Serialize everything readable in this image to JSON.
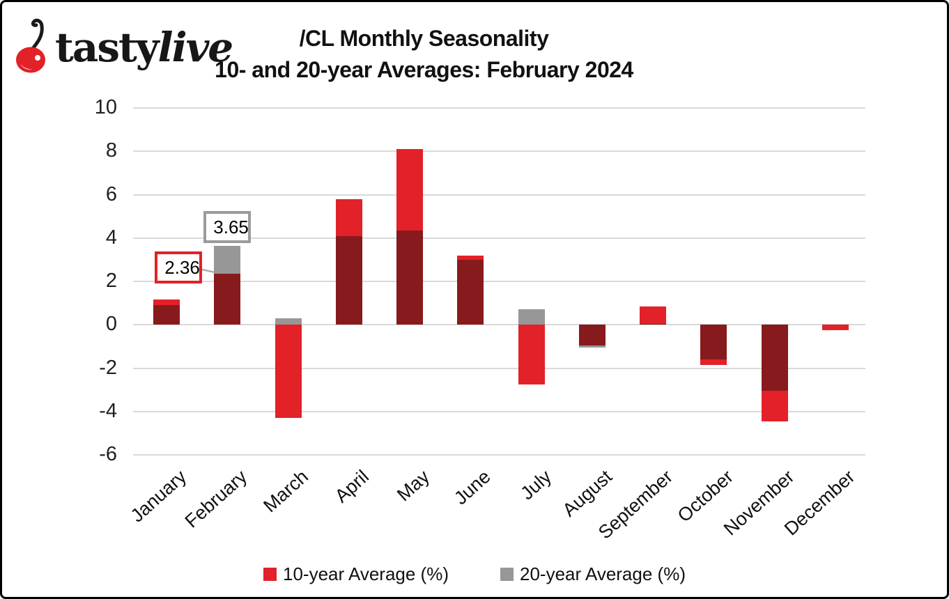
{
  "header": {
    "logo": {
      "brand_bold": "tasty",
      "brand_italic": "live",
      "cherry_color": "#E32128",
      "stem_color": "#1a1a1a"
    },
    "title_line1": "/CL Monthly Seasonality",
    "title_line2": "10- and 20-year Averages: February 2024"
  },
  "chart_data": {
    "type": "bar",
    "title": "/CL Monthly Seasonality",
    "subtitle": "10- and 20-year Averages: February 2024",
    "categories": [
      "January",
      "February",
      "March",
      "April",
      "May",
      "June",
      "July",
      "August",
      "September",
      "October",
      "November",
      "December"
    ],
    "series": [
      {
        "name": "10-year Average (%)",
        "color": "#E32128",
        "values": [
          1.15,
          2.36,
          -4.3,
          5.8,
          8.1,
          3.2,
          -2.75,
          -0.95,
          0.85,
          -1.85,
          -4.45,
          -0.25
        ]
      },
      {
        "name": "20-year Average (%)",
        "color": "#979797",
        "values": [
          0.9,
          3.65,
          0.3,
          4.1,
          4.35,
          3.0,
          0.7,
          -1.05,
          0.05,
          -1.6,
          -3.05,
          0.0
        ]
      }
    ],
    "overlap_color": "#871A1D",
    "y_ticks": [
      10,
      8,
      6,
      4,
      2,
      0,
      -2,
      -4,
      -6
    ],
    "ylim": [
      -6,
      10
    ],
    "grid": true,
    "gridline_color": "#D9D9D9",
    "legend_position": "bottom",
    "annotations": [
      {
        "label": "2.36",
        "month": "February",
        "series": "10-year Average (%)",
        "border_color": "#E32128"
      },
      {
        "label": "3.65",
        "month": "February",
        "series": "20-year Average (%)",
        "border_color": "#9B9B9B"
      }
    ]
  }
}
